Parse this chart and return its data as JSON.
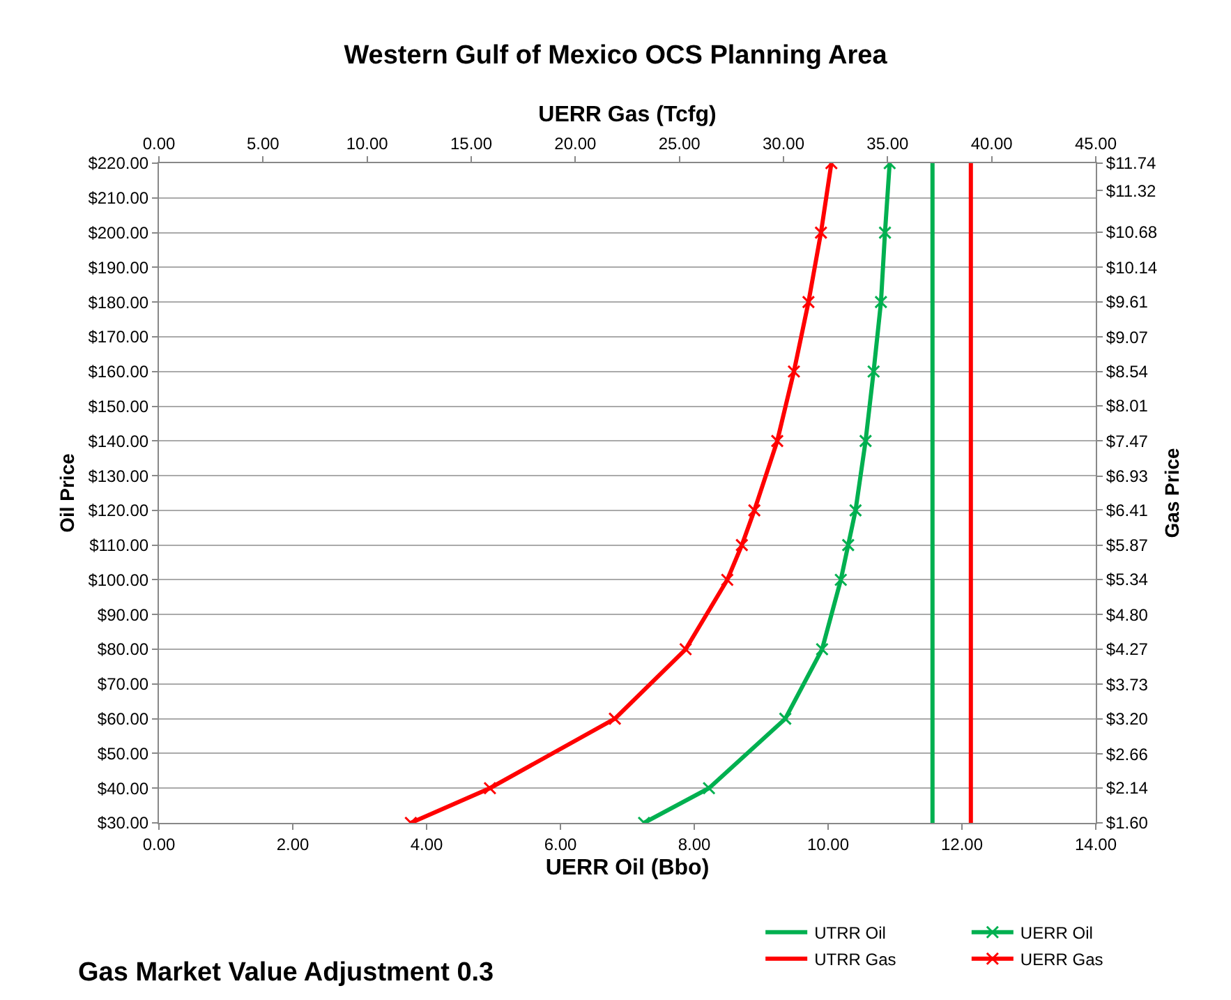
{
  "chart_data": {
    "type": "line",
    "title": "Western Gulf of Mexico OCS Planning Area",
    "xlabel": "UERR Oil (Bbo)",
    "x2label": "UERR Gas (Tcfg)",
    "ylabel": "Oil Price",
    "y2label": "Gas Price",
    "annotations": [
      "Gas Market Value Adjustment 0.3"
    ],
    "grid": "y",
    "legend": "bottom right",
    "line_style": "solid",
    "xlim": [
      0,
      14
    ],
    "x2lim": [
      0,
      45
    ],
    "ylim": [
      30,
      220
    ],
    "y2lim": [
      1.6,
      11.74
    ],
    "xticks": [
      {
        "value": 0,
        "label": "0.00"
      },
      {
        "value": 2,
        "label": "2.00"
      },
      {
        "value": 4,
        "label": "4.00"
      },
      {
        "value": 6,
        "label": "6.00"
      },
      {
        "value": 8,
        "label": "8.00"
      },
      {
        "value": 10,
        "label": "10.00"
      },
      {
        "value": 12,
        "label": "12.00"
      },
      {
        "value": 14,
        "label": "14.00"
      }
    ],
    "x2ticks": [
      {
        "value": 0,
        "label": "0.00"
      },
      {
        "value": 5,
        "label": "5.00"
      },
      {
        "value": 10,
        "label": "10.00"
      },
      {
        "value": 15,
        "label": "15.00"
      },
      {
        "value": 20,
        "label": "20.00"
      },
      {
        "value": 25,
        "label": "25.00"
      },
      {
        "value": 30,
        "label": "30.00"
      },
      {
        "value": 35,
        "label": "35.00"
      },
      {
        "value": 40,
        "label": "40.00"
      },
      {
        "value": 45,
        "label": "45.00"
      }
    ],
    "yticks": [
      {
        "value": 30,
        "label": "$30.00"
      },
      {
        "value": 40,
        "label": "$40.00"
      },
      {
        "value": 50,
        "label": "$50.00"
      },
      {
        "value": 60,
        "label": "$60.00"
      },
      {
        "value": 70,
        "label": "$70.00"
      },
      {
        "value": 80,
        "label": "$80.00"
      },
      {
        "value": 90,
        "label": "$90.00"
      },
      {
        "value": 100,
        "label": "$100.00"
      },
      {
        "value": 110,
        "label": "$110.00"
      },
      {
        "value": 120,
        "label": "$120.00"
      },
      {
        "value": 130,
        "label": "$130.00"
      },
      {
        "value": 140,
        "label": "$140.00"
      },
      {
        "value": 150,
        "label": "$150.00"
      },
      {
        "value": 160,
        "label": "$160.00"
      },
      {
        "value": 170,
        "label": "$170.00"
      },
      {
        "value": 180,
        "label": "$180.00"
      },
      {
        "value": 190,
        "label": "$190.00"
      },
      {
        "value": 200,
        "label": "$200.00"
      },
      {
        "value": 210,
        "label": "$210.00"
      },
      {
        "value": 220,
        "label": "$220.00"
      }
    ],
    "y2ticks": [
      {
        "value": 1.6,
        "label": "$1.60"
      },
      {
        "value": 2.14,
        "label": "$2.14"
      },
      {
        "value": 2.66,
        "label": "$2.66"
      },
      {
        "value": 3.2,
        "label": "$3.20"
      },
      {
        "value": 3.73,
        "label": "$3.73"
      },
      {
        "value": 4.27,
        "label": "$4.27"
      },
      {
        "value": 4.8,
        "label": "$4.80"
      },
      {
        "value": 5.34,
        "label": "$5.34"
      },
      {
        "value": 5.87,
        "label": "$5.87"
      },
      {
        "value": 6.41,
        "label": "$6.41"
      },
      {
        "value": 6.93,
        "label": "$6.93"
      },
      {
        "value": 7.47,
        "label": "$7.47"
      },
      {
        "value": 8.01,
        "label": "$8.01"
      },
      {
        "value": 8.54,
        "label": "$8.54"
      },
      {
        "value": 9.07,
        "label": "$9.07"
      },
      {
        "value": 9.61,
        "label": "$9.61"
      },
      {
        "value": 10.14,
        "label": "$10.14"
      },
      {
        "value": 10.68,
        "label": "$10.68"
      },
      {
        "value": 11.32,
        "label": "$11.32"
      },
      {
        "value": 11.74,
        "label": "$11.74"
      }
    ],
    "series": [
      {
        "name": "UTRR Oil",
        "color": "#00b050",
        "marker": "none",
        "x": [
          11.56,
          11.56
        ],
        "values": [
          30,
          220
        ]
      },
      {
        "name": "UERR Oil",
        "color": "#00b050",
        "marker": "cross",
        "x": [
          7.25,
          8.22,
          9.36,
          9.91,
          10.19,
          10.3,
          10.41,
          10.56,
          10.68,
          10.79,
          10.85,
          10.92
        ],
        "values": [
          30,
          40,
          60,
          80,
          100,
          110,
          120,
          140,
          160,
          180,
          200,
          220
        ]
      },
      {
        "name": "UTRR Gas",
        "color": "#ff0000",
        "marker": "none",
        "axis": "x2",
        "x": [
          39.0,
          39.0
        ],
        "values": [
          30,
          220
        ]
      },
      {
        "name": "UERR Gas",
        "color": "#ff0000",
        "marker": "cross",
        "axis": "x2",
        "x": [
          12.1,
          15.9,
          21.9,
          25.3,
          27.3,
          28.0,
          28.6,
          29.7,
          30.5,
          31.2,
          31.8,
          32.3
        ],
        "values": [
          30,
          40,
          60,
          80,
          100,
          110,
          120,
          140,
          160,
          180,
          200,
          220
        ]
      }
    ]
  }
}
